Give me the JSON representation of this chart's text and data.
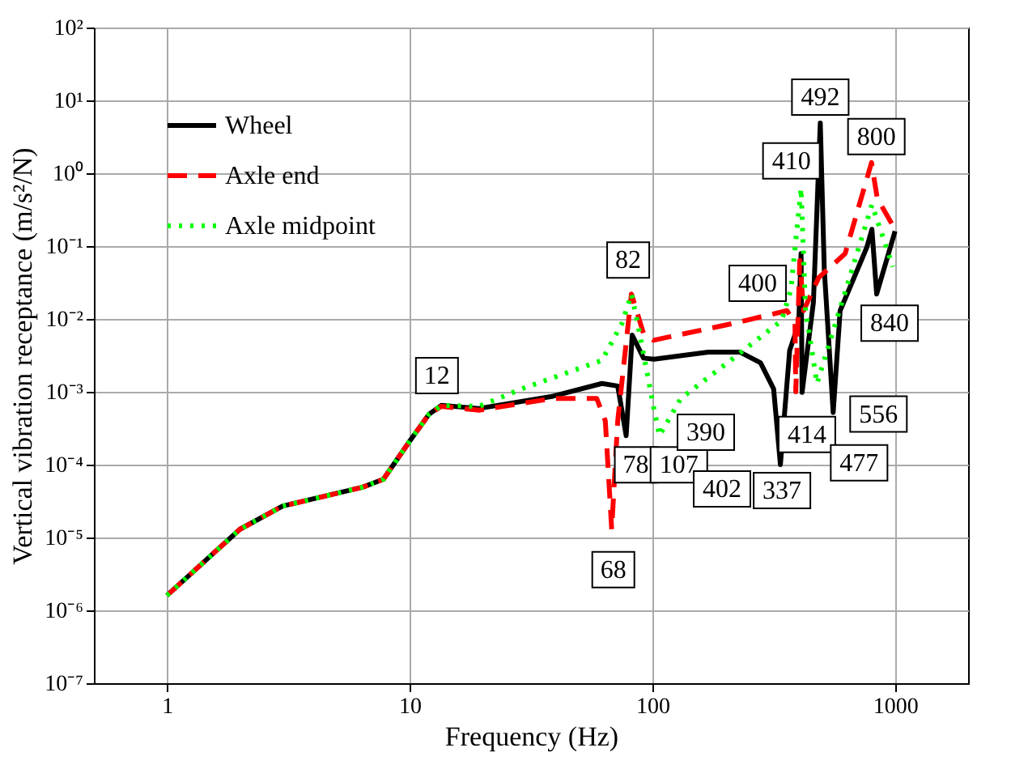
{
  "chart_data": {
    "type": "line",
    "xlabel": "Frequency (Hz)",
    "ylabel": "Vertical vibration receptance (m/s²/N)",
    "log": "xy",
    "grid": true,
    "legend": "top left",
    "marker": "none",
    "xlim": [
      0.5,
      2000
    ],
    "xticks": [
      1,
      10,
      100,
      1000
    ],
    "ylim": [
      1e-07,
      100
    ],
    "yticks": [
      {
        "value": 1e-07,
        "label": "10⁻⁷"
      },
      {
        "value": 1e-06,
        "label": "10⁻⁶"
      },
      {
        "value": 1e-05,
        "label": "10⁻⁵"
      },
      {
        "value": 0.0001,
        "label": "10⁻⁴"
      },
      {
        "value": 0.001,
        "label": "10⁻³"
      },
      {
        "value": 0.01,
        "label": "10⁻²"
      },
      {
        "value": 0.1,
        "label": "10⁻¹"
      },
      {
        "value": 1,
        "label": "10⁰"
      },
      {
        "value": 10,
        "label": "10¹"
      },
      {
        "value": 100,
        "label": "10²"
      }
    ],
    "series": [
      {
        "name": "Wheel",
        "color": "#000000",
        "line_style": "solid",
        "x": [
          1,
          2,
          3,
          6.4,
          7.8,
          10,
          12,
          13.5,
          19.3,
          39,
          62,
          72,
          78,
          82.6,
          92,
          101.6,
          170,
          230,
          279,
          316,
          337,
          368,
          401,
          410,
          414,
          461,
          492,
          511,
          556,
          594,
          764,
          803,
          840,
          1000
        ],
        "values": [
          1.6e-06,
          1.3e-05,
          2.7e-05,
          4.9e-05,
          6.3e-05,
          0.00021,
          0.00049,
          0.00065,
          0.00059,
          0.00087,
          0.0013,
          0.0012,
          0.00025,
          0.006,
          0.0029,
          0.0028,
          0.0035,
          0.0035,
          0.0025,
          0.0011,
          0.0001,
          0.0037,
          0.0087,
          0.079,
          0.00098,
          0.017,
          4.9,
          0.048,
          0.00052,
          0.013,
          0.095,
          0.17,
          0.022,
          0.16
        ]
      },
      {
        "name": "Axle end",
        "color": "#ff0000",
        "line_style": "dashed",
        "x": [
          1,
          2,
          3,
          6.4,
          7.8,
          10,
          12,
          13.5,
          19.3,
          39,
          59,
          64,
          68,
          72,
          82,
          92,
          101,
          216,
          359,
          387,
          390,
          405,
          420,
          485,
          623,
          800,
          845,
          1000
        ],
        "values": [
          1.6e-06,
          1.3e-05,
          2.7e-05,
          4.9e-05,
          6.3e-05,
          0.00021,
          0.00049,
          0.00063,
          0.00056,
          0.00081,
          0.00081,
          0.0004,
          1.3e-05,
          0.0004,
          0.022,
          0.0063,
          0.0051,
          0.0087,
          0.013,
          0.0087,
          0.001,
          0.063,
          0.013,
          0.037,
          0.079,
          1.4,
          0.45,
          0.17
        ]
      },
      {
        "name": "Axle midpoint",
        "color": "#00ff00",
        "line_style": "dotted",
        "x": [
          1,
          2,
          3,
          6.4,
          7.8,
          10,
          12,
          13.5,
          19.3,
          29,
          62,
          75,
          82,
          87,
          101.6,
          107,
          131,
          216,
          341,
          372,
          410,
          428,
          477,
          594,
          803,
          980
        ],
        "values": [
          1.6e-06,
          1.3e-05,
          2.7e-05,
          4.9e-05,
          6.3e-05,
          0.00021,
          0.00049,
          0.00065,
          0.00063,
          0.0011,
          0.0027,
          0.0087,
          0.022,
          0.0087,
          0.00058,
          0.00025,
          0.00081,
          0.0029,
          0.0095,
          0.025,
          0.62,
          0.013,
          0.0013,
          0.014,
          0.37,
          0.052
        ]
      }
    ],
    "annotations": [
      {
        "text": "12",
        "x": 12,
        "y": 0.00049
      },
      {
        "text": "82",
        "x": 82,
        "y": 0.022
      },
      {
        "text": "78",
        "x": 78,
        "y": 0.00025
      },
      {
        "text": "68",
        "x": 68,
        "y": 1.3e-05
      },
      {
        "text": "107",
        "x": 107,
        "y": 0.00025
      },
      {
        "text": "400",
        "x": 405,
        "y": 0.063
      },
      {
        "text": "410",
        "x": 410,
        "y": 0.62
      },
      {
        "text": "492",
        "x": 492,
        "y": 4.9
      },
      {
        "text": "800",
        "x": 800,
        "y": 1.4
      },
      {
        "text": "840",
        "x": 840,
        "y": 0.022
      },
      "390",
      "402",
      {
        "text": "337",
        "x": 337,
        "y": 0.0001
      },
      {
        "text": "414",
        "x": 414,
        "y": 0.00098
      },
      {
        "text": "477",
        "x": 477,
        "y": 0.0013
      },
      {
        "text": "556",
        "x": 556,
        "y": 0.00052
      }
    ]
  }
}
